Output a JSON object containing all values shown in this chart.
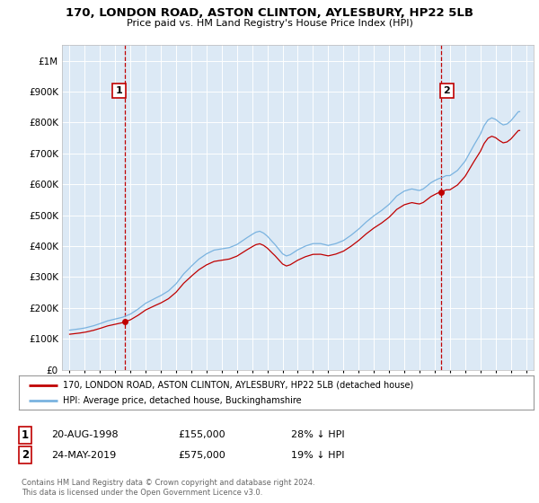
{
  "title": "170, LONDON ROAD, ASTON CLINTON, AYLESBURY, HP22 5LB",
  "subtitle": "Price paid vs. HM Land Registry's House Price Index (HPI)",
  "sale1_date": 1998.64,
  "sale1_price": 155000,
  "sale1_label": "1",
  "sale1_text": "20-AUG-1998",
  "sale1_pct": "28% ↓ HPI",
  "sale2_date": 2019.39,
  "sale2_price": 575000,
  "sale2_label": "2",
  "sale2_text": "24-MAY-2019",
  "sale2_pct": "19% ↓ HPI",
  "legend_property": "170, LONDON ROAD, ASTON CLINTON, AYLESBURY, HP22 5LB (detached house)",
  "legend_hpi": "HPI: Average price, detached house, Buckinghamshire",
  "footer": "Contains HM Land Registry data © Crown copyright and database right 2024.\nThis data is licensed under the Open Government Licence v3.0.",
  "hpi_color": "#7ab3e0",
  "sale_color": "#c00000",
  "background_color": "#ffffff",
  "plot_bg_color": "#dce9f5",
  "grid_color": "#ffffff",
  "ylim": [
    0,
    1050000
  ],
  "xlim_start": 1994.5,
  "xlim_end": 2025.5
}
